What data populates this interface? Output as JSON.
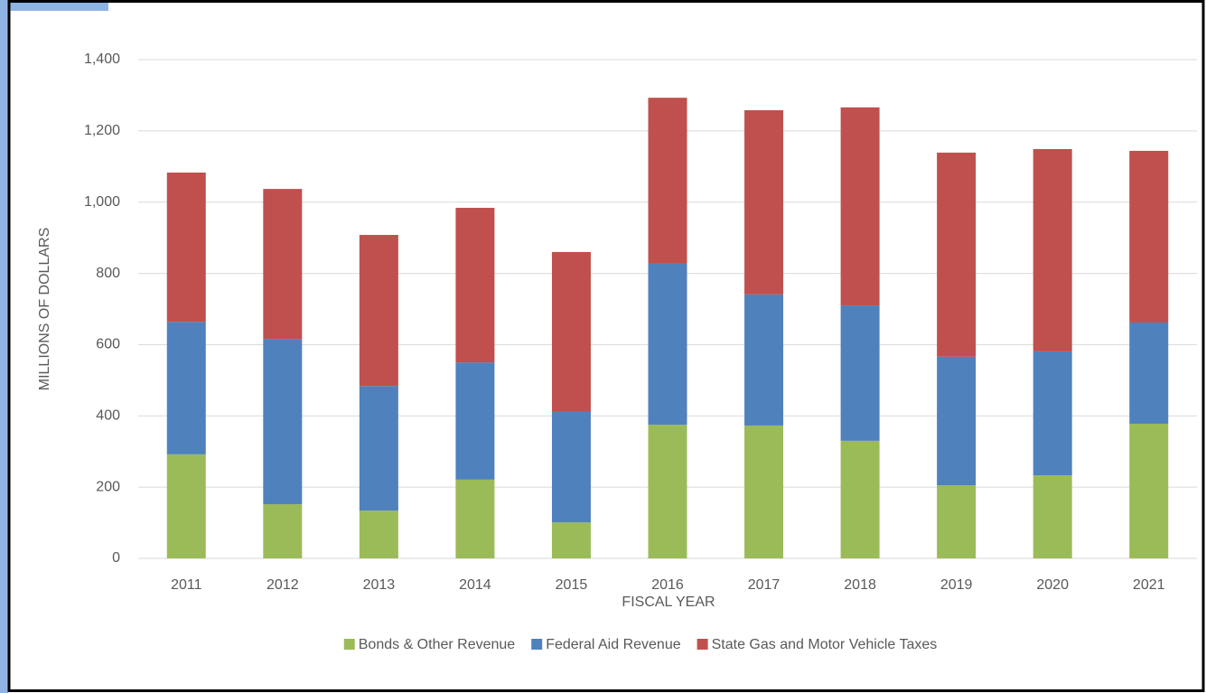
{
  "chart_data": {
    "type": "stacked_bar",
    "xlabel": "FISCAL YEAR",
    "ylabel": "MILLIONS OF DOLLARS",
    "categories": [
      "2011",
      "2012",
      "2013",
      "2014",
      "2015",
      "2016",
      "2017",
      "2018",
      "2019",
      "2020",
      "2021"
    ],
    "series": [
      {
        "name": "Bonds & Other Revenue",
        "color": "#9bbb59",
        "values": [
          292,
          152,
          134,
          221,
          101,
          375,
          373,
          330,
          205,
          233,
          378
        ]
      },
      {
        "name": "Federal Aid Revenue",
        "color": "#4f81bd",
        "values": [
          372,
          464,
          350,
          329,
          310,
          452,
          368,
          380,
          361,
          348,
          284
        ]
      },
      {
        "name": "State Gas and Motor Vehicle Taxes",
        "color": "#c0504d",
        "values": [
          419,
          421,
          424,
          434,
          449,
          466,
          517,
          556,
          573,
          568,
          482
        ]
      }
    ],
    "ylim": [
      0,
      1400
    ],
    "yticks": [
      0,
      200,
      400,
      600,
      800,
      {
        "value": 1000,
        "label": "1,000"
      },
      {
        "value": 1200,
        "label": "1,200"
      },
      {
        "value": 1400,
        "label": "1,400"
      }
    ],
    "grid": true,
    "legend": "bottom"
  }
}
